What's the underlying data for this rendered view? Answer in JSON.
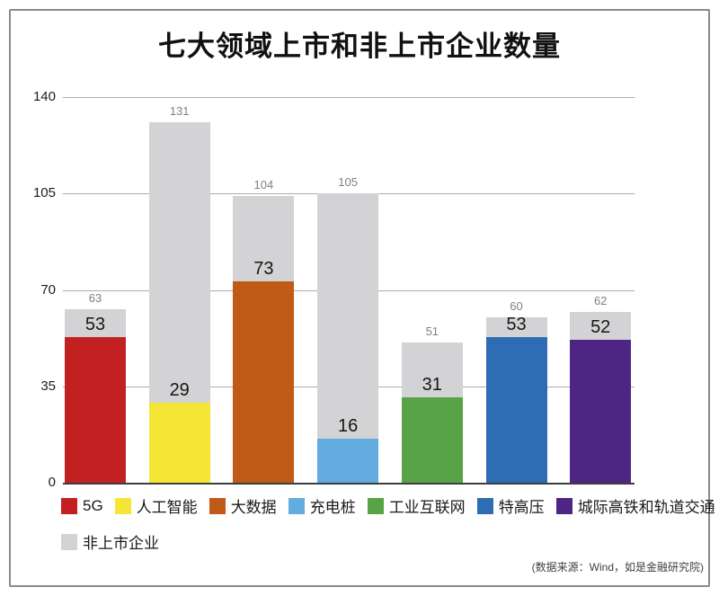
{
  "title": "七大领域上市和非上市企业数量",
  "source_note": "(数据来源：Wind，如是金融研究院)",
  "chart_data": {
    "type": "bar",
    "stacked": true,
    "title": "七大领域上市和非上市企业数量",
    "categories": [
      "5G",
      "人工智能",
      "大数据",
      "充电桩",
      "工业互联网",
      "特高压",
      "城际高铁和轨道交通"
    ],
    "bar_colors": [
      "#c32022",
      "#f5e636",
      "#c05a17",
      "#62acdf",
      "#57a346",
      "#2e6db4",
      "#4f2583"
    ],
    "listed_values": [
      53,
      29,
      73,
      16,
      31,
      53,
      52
    ],
    "total_values": [
      63,
      131,
      104,
      105,
      51,
      60,
      62
    ],
    "unlisted_series_name": "非上市企业",
    "unlisted_color": "#d3d3d5",
    "yticks": [
      0,
      35,
      70,
      105,
      140
    ],
    "ylim": [
      0,
      140
    ],
    "grid": true,
    "legend_position": "bottom"
  },
  "legend": {
    "row1": [
      {
        "label": "5G",
        "color": "#c32022"
      },
      {
        "label": "人工智能",
        "color": "#f5e636"
      },
      {
        "label": "大数据",
        "color": "#c05a17"
      },
      {
        "label": "充电桩",
        "color": "#62acdf"
      },
      {
        "label": "工业互联网",
        "color": "#57a346"
      },
      {
        "label": "特高压",
        "color": "#2e6db4"
      },
      {
        "label": "城际高铁和轨道交通",
        "color": "#4f2583"
      }
    ],
    "row2": [
      {
        "label": "非上市企业",
        "color": "#d3d3d5"
      }
    ]
  },
  "colors": {
    "grid": "#adadad",
    "axis": "#3d3d3d",
    "total_label": "#7f7f7f",
    "value_label": "#161616",
    "frame_border": "#8a8a8a"
  }
}
